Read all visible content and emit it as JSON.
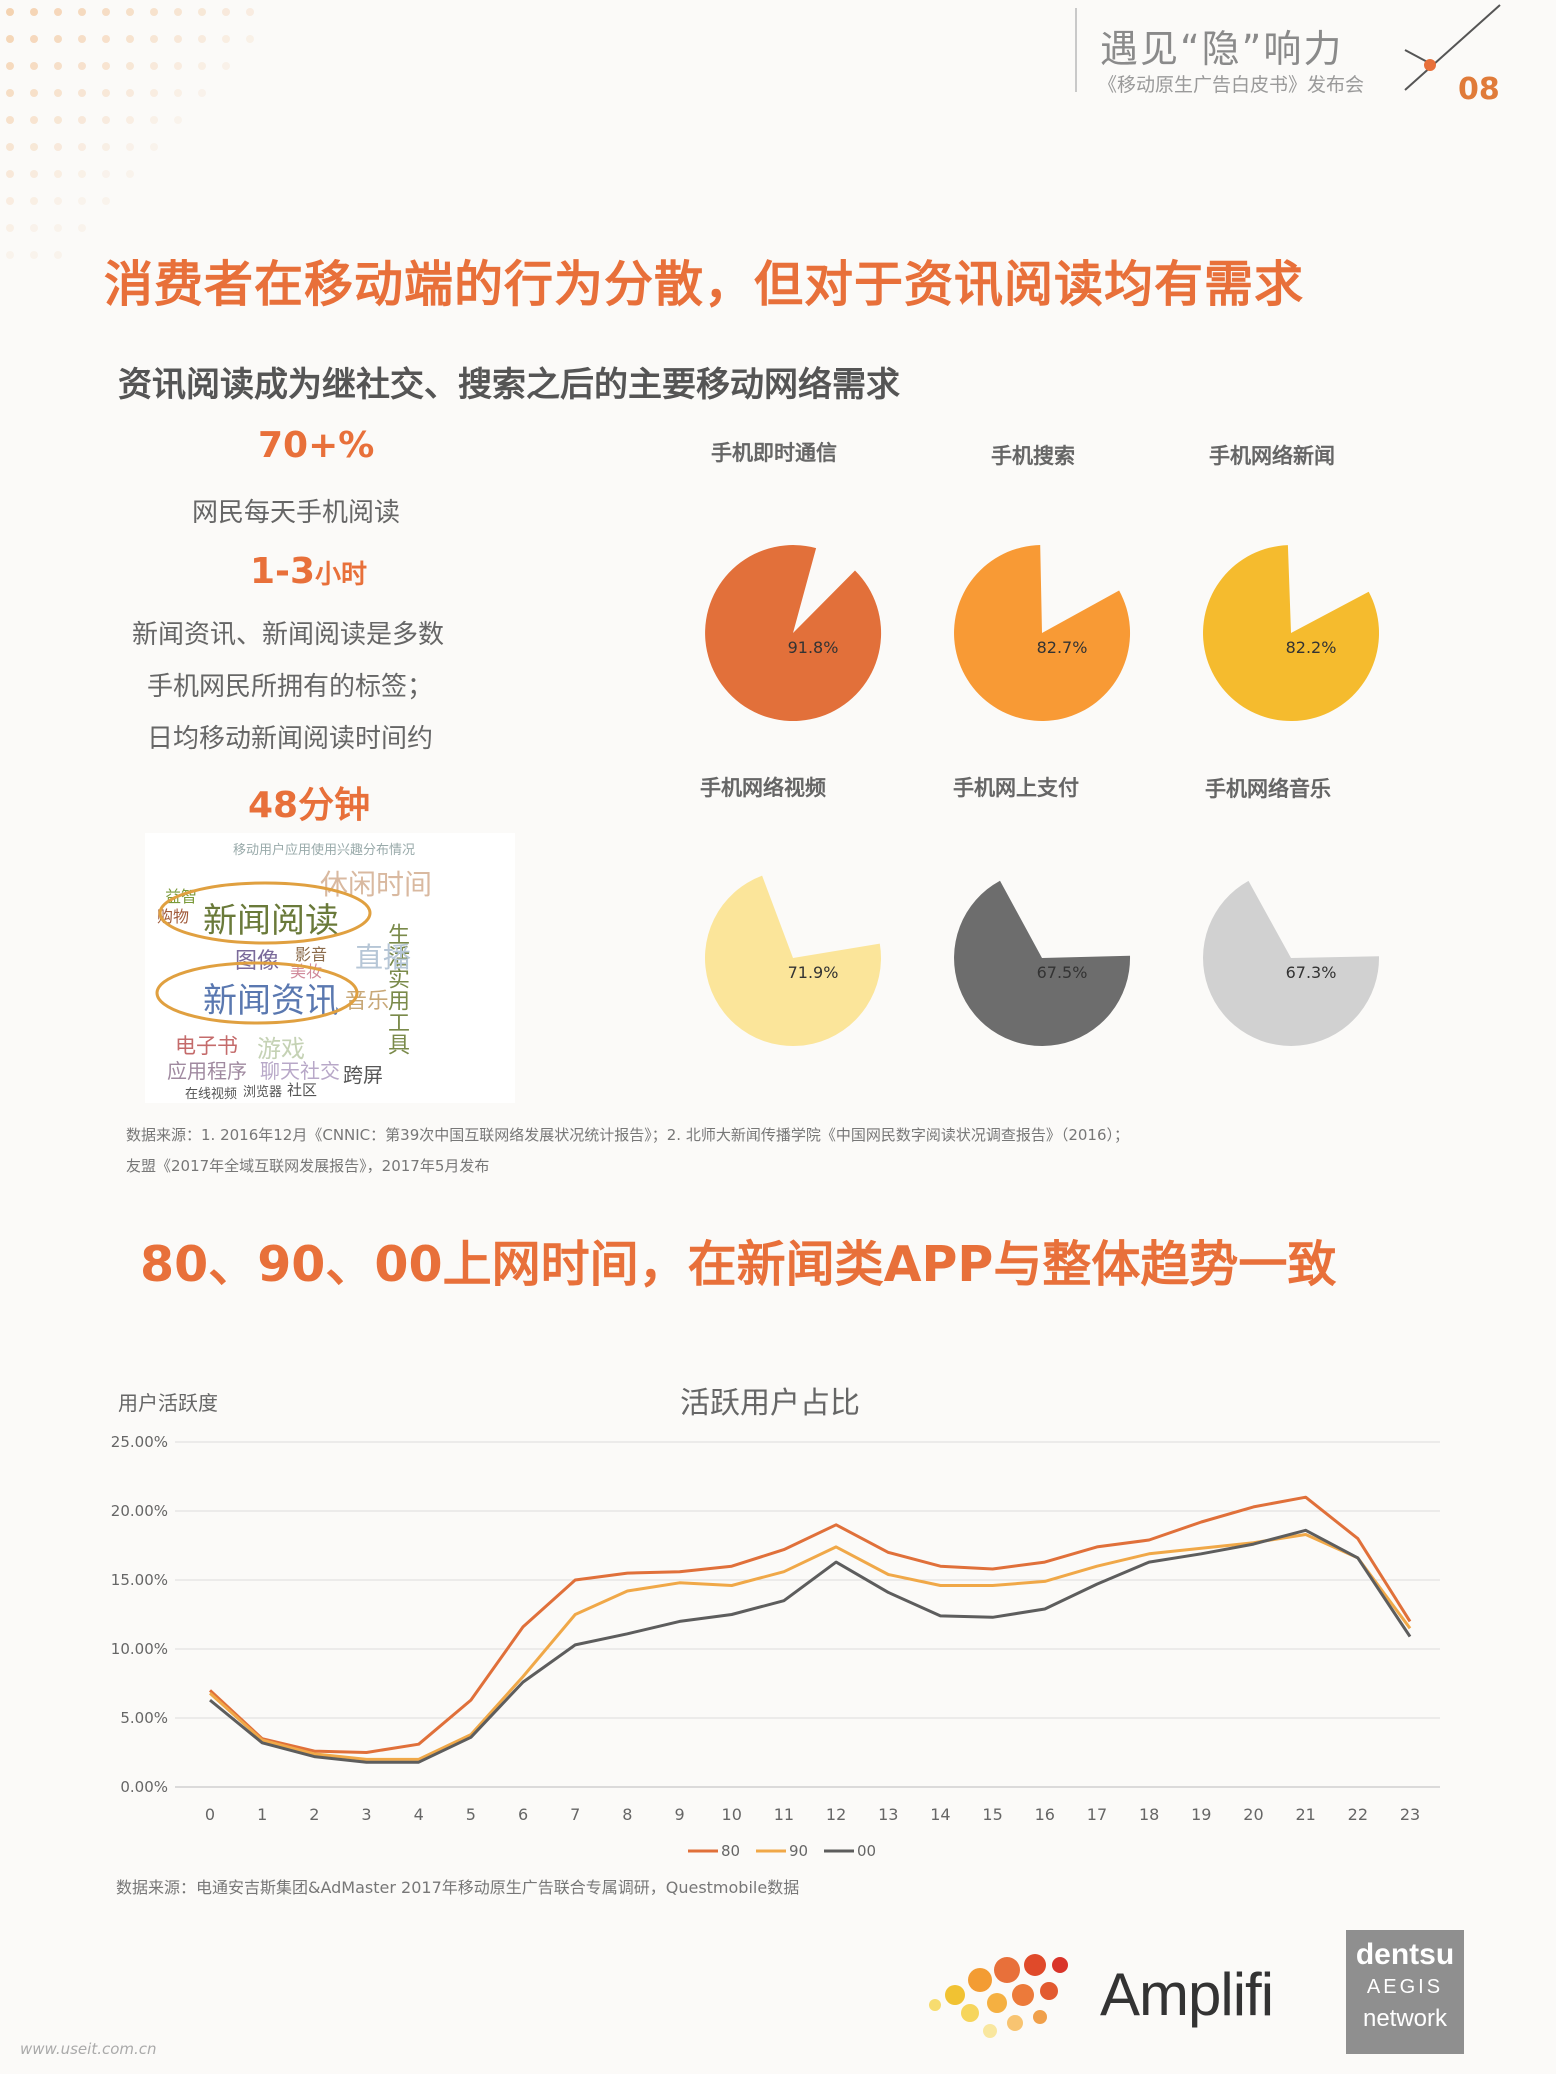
{
  "header": {
    "title": "遇见“隐”响力",
    "subtitle": "《移动原生广告白皮书》发布会",
    "page_number": "08"
  },
  "section1": {
    "title": "消费者在移动端的行为分散，但对于资讯阅读均有需求",
    "subtitle": "资讯阅读成为继社交、搜索之后的主要移动网络需求",
    "stats": {
      "stat1_value": "70+%",
      "stat1_desc": "网民每天手机阅读",
      "stat2_value": "1-3",
      "stat2_unit": "小时",
      "stat2_desc_line1": "新闻资讯、新闻阅读是多数",
      "stat2_desc_line2": "手机网民所拥有的标签；",
      "stat2_desc_line3": "日均移动新闻阅读时间约",
      "stat3_value": "48分钟"
    },
    "word_cloud": {
      "title": "移动用户应用使用兴趣分布情况",
      "words": [
        "新闻阅读",
        "新闻资讯",
        "休闲时间",
        "生活实用工具",
        "直播",
        "图像",
        "电子书",
        "应用程序",
        "聊天社交",
        "跨屏",
        "购物",
        "社区",
        "在线视频",
        "浏览器",
        "影音",
        "游戏",
        "音乐",
        "美妆",
        "益智"
      ]
    },
    "source_line1": "数据来源：1. 2016年12月《CNNIC：第39次中国互联网络发展状况统计报告》；2. 北师大新闻传播学院《中国网民数字阅读状况调查报告》（2016）；",
    "source_line2": "友盟《2017年全域互联网发展报告》，2017年5月发布"
  },
  "chart_data": [
    {
      "type": "pie",
      "title": "",
      "pies": [
        {
          "name": "手机即时通信",
          "value": 91.8,
          "label": "91.8%",
          "color": "#e2703a"
        },
        {
          "name": "手机搜索",
          "value": 82.7,
          "label": "82.7%",
          "color": "#f89a35"
        },
        {
          "name": "手机网络新闻",
          "value": 82.2,
          "label": "82.2%",
          "color": "#f5bb2e"
        },
        {
          "name": "手机网络视频",
          "value": 71.9,
          "label": "71.9%",
          "color": "#fbe59a"
        },
        {
          "name": "手机网上支付",
          "value": 67.5,
          "label": "67.5%",
          "color": "#6d6d6d"
        },
        {
          "name": "手机网络音乐",
          "value": 67.3,
          "label": "67.3%",
          "color": "#d1d1d1"
        }
      ]
    },
    {
      "type": "line",
      "title": "活跃用户占比",
      "ylabel": "用户活跃度",
      "xlabel": "",
      "x": [
        0,
        1,
        2,
        3,
        4,
        5,
        6,
        7,
        8,
        9,
        10,
        11,
        12,
        13,
        14,
        15,
        16,
        17,
        18,
        19,
        20,
        21,
        22,
        23
      ],
      "ylim": [
        0,
        25
      ],
      "yticks": [
        "0.00%",
        "5.00%",
        "10.00%",
        "15.00%",
        "20.00%",
        "25.00%"
      ],
      "grid": true,
      "legend": "bottom",
      "series": [
        {
          "name": "80",
          "color": "#e0703a",
          "values": [
            7.0,
            3.5,
            2.6,
            2.5,
            3.1,
            6.3,
            11.6,
            15.0,
            15.5,
            15.6,
            16.0,
            17.2,
            19.0,
            17.0,
            16.0,
            15.8,
            16.3,
            17.4,
            17.9,
            19.2,
            20.3,
            21.0,
            18.0,
            12.0
          ]
        },
        {
          "name": "90",
          "color": "#f0a848",
          "values": [
            6.8,
            3.4,
            2.4,
            2.0,
            2.0,
            3.8,
            8.0,
            12.5,
            14.2,
            14.8,
            14.6,
            15.6,
            17.4,
            15.4,
            14.6,
            14.6,
            14.9,
            16.0,
            16.9,
            17.3,
            17.7,
            18.3,
            16.6,
            11.5
          ]
        },
        {
          "name": "00",
          "color": "#5d5d5d",
          "values": [
            6.3,
            3.2,
            2.2,
            1.8,
            1.8,
            3.6,
            7.6,
            10.3,
            11.1,
            12.0,
            12.5,
            13.5,
            16.3,
            14.1,
            12.4,
            12.3,
            12.9,
            14.7,
            16.3,
            16.9,
            17.6,
            18.6,
            16.6,
            10.9
          ]
        }
      ]
    }
  ],
  "section2": {
    "title": "80、90、00上网时间，在新闻类APP与整体趋势一致",
    "source": "数据来源：电通安吉斯集团&AdMaster 2017年移动原生广告联合专属调研，Questmobile数据"
  },
  "footer": {
    "logo_text": "Amplifi",
    "brand_line1": "dentsu",
    "brand_line2": "AEGIS",
    "brand_line3": "network",
    "watermark": "www.useit.com.cn"
  }
}
